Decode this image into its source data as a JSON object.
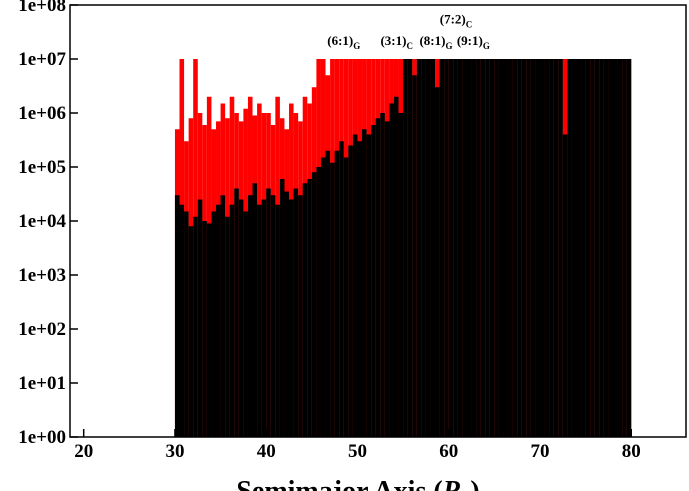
{
  "chart_data": {
    "type": "bar",
    "log_y": true,
    "xlim": [
      18.5,
      86
    ],
    "ylim": [
      1,
      100000000
    ],
    "xticks": [
      20,
      30,
      40,
      50,
      60,
      70,
      80
    ],
    "yticks": [
      {
        "value": 1,
        "label": "1e+00"
      },
      {
        "value": 10,
        "label": "1e+01"
      },
      {
        "value": 100,
        "label": "1e+02"
      },
      {
        "value": 1000,
        "label": "1e+03"
      },
      {
        "value": 10000,
        "label": "1e+04"
      },
      {
        "value": 100000,
        "label": "1e+05"
      },
      {
        "value": 1000000,
        "label": "1e+06"
      },
      {
        "value": 10000000,
        "label": "1e+07"
      },
      {
        "value": 100000000,
        "label": "1e+08"
      }
    ],
    "xlabel": [
      "Semimajor Axis (",
      "R",
      "J",
      ")"
    ],
    "bar_width": 0.5,
    "x": [
      30,
      30.5,
      31,
      31.5,
      32,
      32.5,
      33,
      33.5,
      34,
      34.5,
      35,
      35.5,
      36,
      36.5,
      37,
      37.5,
      38,
      38.5,
      39,
      39.5,
      40,
      40.5,
      41,
      41.5,
      42,
      42.5,
      43,
      43.5,
      44,
      44.5,
      45,
      45.5,
      46,
      46.5,
      47,
      47.5,
      48,
      48.5,
      49,
      49.5,
      50,
      50.5,
      51,
      51.5,
      52,
      52.5,
      53,
      53.5,
      54,
      54.5,
      55,
      55.5,
      56,
      56.5,
      57,
      57.5,
      58,
      58.5,
      59,
      59.5,
      60,
      60.5,
      61,
      61.5,
      62,
      62.5,
      63,
      63.5,
      64,
      64.5,
      65,
      65.5,
      66,
      66.5,
      67,
      67.5,
      68,
      68.5,
      69,
      69.5,
      70,
      70.5,
      71,
      71.5,
      72,
      72.5,
      73,
      73.5,
      74,
      74.5,
      75,
      75.5,
      76,
      76.5,
      77,
      77.5,
      78,
      78.5,
      79,
      79.5
    ],
    "series": [
      {
        "color": "#ff0000",
        "values": [
          500000,
          10000000,
          300000,
          800000,
          10000000,
          1000000,
          600000,
          2000000,
          500000,
          700000,
          1500000,
          800000,
          2000000,
          1000000,
          700000,
          1200000,
          2000000,
          900000,
          1500000,
          1000000,
          1000000,
          600000,
          2000000,
          800000,
          500000,
          1500000,
          1000000,
          700000,
          2000000,
          1500000,
          3000000,
          10000000,
          10000000,
          5000000,
          10000000,
          10000000,
          10000000,
          10000000,
          10000000,
          10000000,
          10000000,
          10000000,
          10000000,
          10000000,
          10000000,
          10000000,
          10000000,
          10000000,
          10000000,
          10000000,
          10000000,
          10000000,
          10000000,
          10000000,
          10000000,
          10000000,
          10000000,
          10000000,
          10000000,
          10000000,
          10000000,
          10000000,
          10000000,
          10000000,
          10000000,
          10000000,
          10000000,
          10000000,
          10000000,
          10000000,
          10000000,
          10000000,
          10000000,
          10000000,
          10000000,
          10000000,
          10000000,
          10000000,
          10000000,
          10000000,
          10000000,
          10000000,
          10000000,
          10000000,
          10000000,
          10000000,
          10000000,
          10000000,
          10000000,
          10000000,
          10000000,
          10000000,
          10000000,
          10000000,
          10000000,
          10000000,
          10000000,
          10000000,
          10000000,
          10000000
        ]
      },
      {
        "color": "#000000",
        "values": [
          30000,
          20000,
          15000,
          8000,
          12000,
          25000,
          10000,
          9000,
          15000,
          20000,
          30000,
          12000,
          20000,
          40000,
          25000,
          15000,
          30000,
          50000,
          20000,
          25000,
          40000,
          30000,
          20000,
          60000,
          35000,
          25000,
          40000,
          30000,
          50000,
          60000,
          80000,
          100000,
          150000,
          200000,
          120000,
          200000,
          300000,
          150000,
          250000,
          400000,
          300000,
          500000,
          400000,
          600000,
          800000,
          1000000,
          700000,
          1500000,
          2000000,
          1000000,
          10000000,
          10000000,
          5000000,
          10000000,
          10000000,
          10000000,
          10000000,
          3000000,
          10000000,
          10000000,
          10000000,
          10000000,
          10000000,
          10000000,
          10000000,
          10000000,
          10000000,
          10000000,
          10000000,
          10000000,
          10000000,
          10000000,
          10000000,
          10000000,
          10000000,
          10000000,
          10000000,
          10000000,
          10000000,
          10000000,
          10000000,
          10000000,
          10000000,
          10000000,
          10000000,
          400000,
          10000000,
          10000000,
          10000000,
          10000000,
          10000000,
          10000000,
          10000000,
          10000000,
          10000000,
          10000000,
          10000000,
          10000000,
          10000000,
          10000000
        ]
      }
    ],
    "annotations": [
      {
        "text": "(6:1)",
        "sub": "G",
        "x": 48.5,
        "y": 18000000
      },
      {
        "text": "(3:1)",
        "sub": "C",
        "x": 54.3,
        "y": 18000000
      },
      {
        "text": "(8:1)",
        "sub": "G",
        "x": 58.6,
        "y": 18000000
      },
      {
        "text": "(9:1)",
        "sub": "G",
        "x": 62.7,
        "y": 18000000
      },
      {
        "text": "(7:2)",
        "sub": "C",
        "x": 60.8,
        "y": 45000000
      }
    ]
  }
}
